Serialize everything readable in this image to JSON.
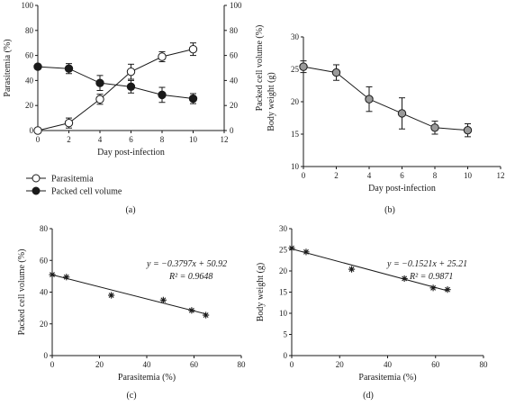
{
  "colors": {
    "axis": "#1a1a1a",
    "parasitemia_fill": "#ffffff",
    "pcv_fill": "#1a1a1a",
    "bodyweight_fill": "#9a9a9a",
    "error_bar": "#1a1a1a"
  },
  "chart_data": [
    {
      "panel": "(a)",
      "type": "line",
      "title": "",
      "xlabel": "Day post-infection",
      "ylabel_left": "Parasitemia (%)",
      "ylabel_right": "Packed cell volume (%)",
      "xlim": [
        0,
        12
      ],
      "ylim_left": [
        0,
        100
      ],
      "ylim_right": [
        0,
        100
      ],
      "xticks": [
        "0",
        "2",
        "4",
        "6",
        "8",
        "10",
        "12"
      ],
      "yticks_left": [
        "0",
        "20",
        "40",
        "60",
        "80",
        "100"
      ],
      "yticks_right": [
        "0",
        "20",
        "40",
        "60",
        "80",
        "100"
      ],
      "legend_position": "bottom-left",
      "x": [
        0,
        2,
        4,
        6,
        8,
        10
      ],
      "series": [
        {
          "name": "Parasitemia",
          "marker": "open-circle",
          "axis": "left",
          "values": [
            0,
            6,
            25,
            47,
            59,
            65
          ],
          "errors": [
            1,
            4,
            4,
            6,
            4,
            5
          ]
        },
        {
          "name": "Packed cell volume",
          "marker": "filled-circle",
          "axis": "right",
          "values": [
            51,
            49.5,
            38,
            35,
            28.5,
            25.5
          ],
          "errors": [
            2,
            4,
            6,
            5,
            6,
            4
          ]
        }
      ]
    },
    {
      "panel": "(b)",
      "type": "line",
      "title": "",
      "xlabel": "Day post-infection",
      "ylabel": "Body weight (g)",
      "xlim": [
        0,
        12
      ],
      "ylim": [
        10,
        30
      ],
      "xticks": [
        "0",
        "2",
        "4",
        "6",
        "8",
        "10",
        "12"
      ],
      "yticks": [
        "10",
        "15",
        "20",
        "25",
        "30"
      ],
      "x": [
        0,
        2,
        4,
        6,
        8,
        10
      ],
      "series": [
        {
          "name": "",
          "marker": "gray-circle",
          "values": [
            25.4,
            24.5,
            20.4,
            18.2,
            16.0,
            15.6
          ],
          "errors": [
            0.9,
            1.2,
            1.9,
            2.4,
            1.0,
            1.0
          ]
        }
      ]
    },
    {
      "panel": "(c)",
      "type": "scatter",
      "title": "",
      "xlabel": "Parasitemia (%)",
      "ylabel": "Packed cell volume (%)",
      "xlim": [
        0,
        80
      ],
      "ylim": [
        0,
        80
      ],
      "xticks": [
        "0",
        "20",
        "40",
        "60",
        "80"
      ],
      "yticks": [
        "0",
        "20",
        "40",
        "60",
        "80"
      ],
      "equation": "y = −0.3797x + 50.92",
      "r2": "R² = 0.9648",
      "points": [
        {
          "x": 0,
          "y": 51
        },
        {
          "x": 6,
          "y": 49.5
        },
        {
          "x": 25,
          "y": 38
        },
        {
          "x": 47,
          "y": 35
        },
        {
          "x": 59,
          "y": 28.5
        },
        {
          "x": 65,
          "y": 25.5
        }
      ],
      "fit": {
        "slope": -0.3797,
        "intercept": 50.92,
        "x_range": [
          0,
          65
        ]
      }
    },
    {
      "panel": "(d)",
      "type": "scatter",
      "title": "",
      "xlabel": "Parasitemia (%)",
      "ylabel": "Body weight (g)",
      "xlim": [
        0,
        80
      ],
      "ylim": [
        0,
        30
      ],
      "xticks": [
        "0",
        "20",
        "40",
        "60",
        "80"
      ],
      "yticks": [
        "0",
        "5",
        "10",
        "15",
        "20",
        "25",
        "30"
      ],
      "equation": "y = −0.1521x + 25.21",
      "r2": "R² = 0.9871",
      "points": [
        {
          "x": 0,
          "y": 25.4
        },
        {
          "x": 6,
          "y": 24.5
        },
        {
          "x": 25,
          "y": 20.4
        },
        {
          "x": 47,
          "y": 18.2
        },
        {
          "x": 59,
          "y": 16.0
        },
        {
          "x": 65,
          "y": 15.6
        }
      ],
      "fit": {
        "slope": -0.1521,
        "intercept": 25.21,
        "x_range": [
          0,
          65
        ]
      }
    }
  ]
}
